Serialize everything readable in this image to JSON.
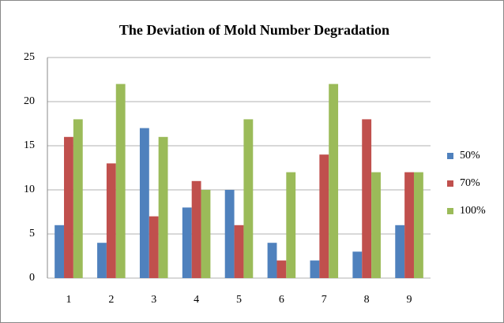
{
  "chart_data": {
    "type": "bar",
    "title": "The Deviation of Mold Number Degradation",
    "categories": [
      "1",
      "2",
      "3",
      "4",
      "5",
      "6",
      "7",
      "8",
      "9"
    ],
    "series": [
      {
        "name": "50%",
        "color": "#4f81bd",
        "values": [
          6,
          4,
          17,
          8,
          10,
          4,
          2,
          3,
          6
        ]
      },
      {
        "name": "70%",
        "color": "#c0504d",
        "values": [
          16,
          13,
          7,
          11,
          6,
          2,
          14,
          18,
          12
        ]
      },
      {
        "name": "100%",
        "color": "#9bbb59",
        "values": [
          18,
          22,
          16,
          10,
          18,
          12,
          22,
          12,
          12
        ]
      }
    ],
    "ylim": [
      0,
      25
    ],
    "yticks": [
      0,
      5,
      10,
      15,
      20,
      25
    ],
    "grid": true,
    "legend": "right"
  }
}
